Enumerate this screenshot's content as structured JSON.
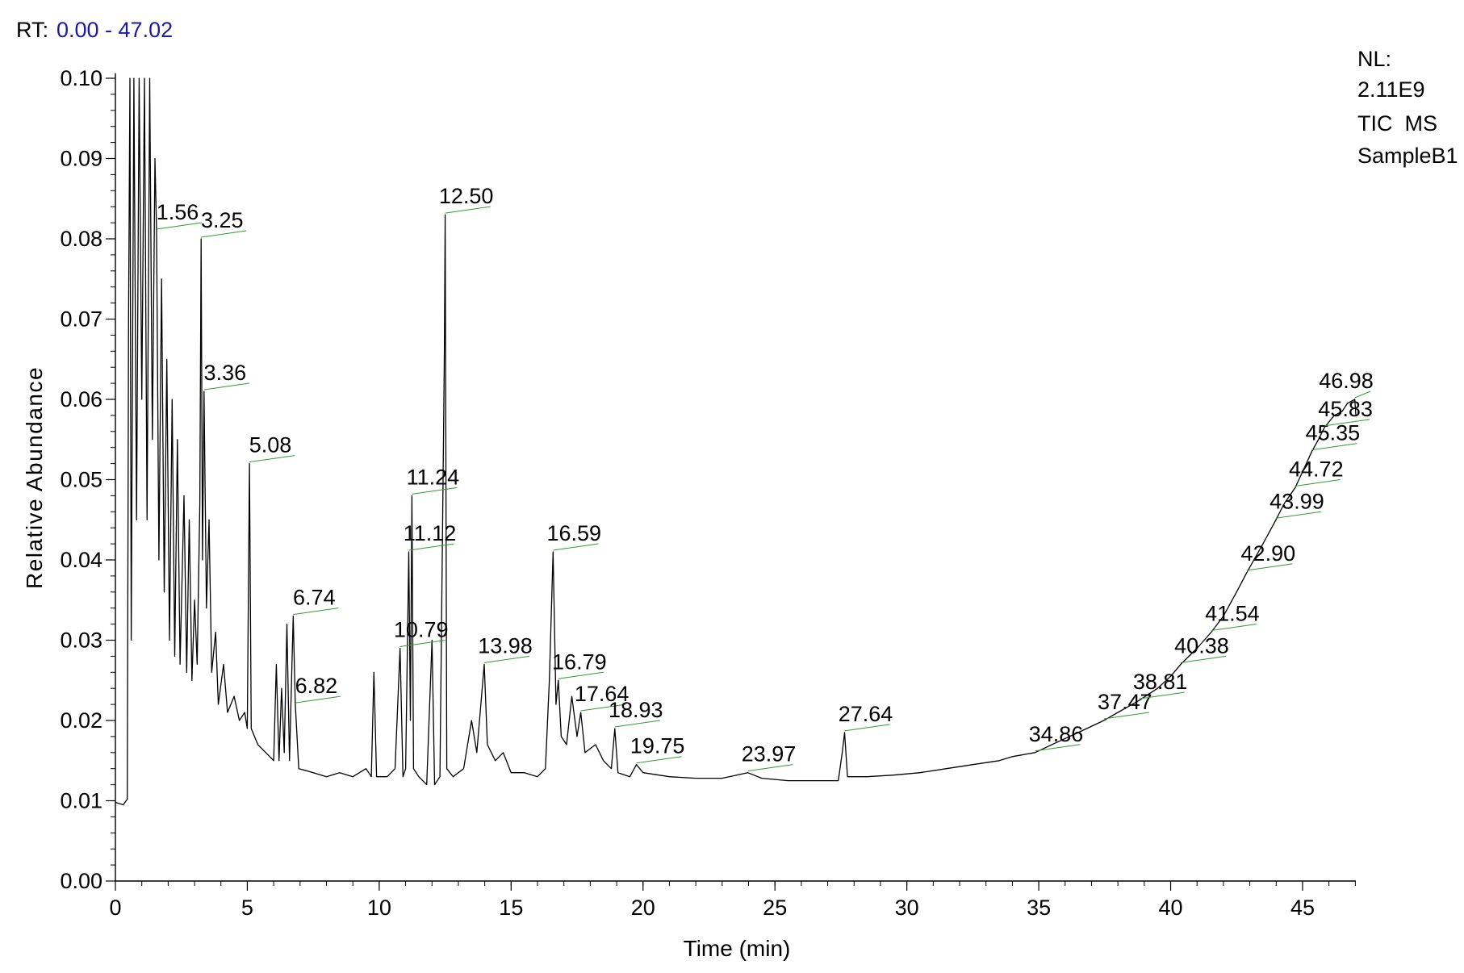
{
  "header": {
    "rt_label": "RT:",
    "rt_range": "0.00 - 47.02"
  },
  "info": {
    "nl_label": "NL:",
    "nl_value": "2.11E9",
    "scan_type": "TIC  MS",
    "sample": "SampleB1"
  },
  "colors": {
    "trace": "#000000",
    "peak_leader": "#2e9e2e",
    "rt_range_text": "#1a1aa6"
  },
  "chart_data": {
    "type": "line",
    "title": "",
    "xlabel": "Time (min)",
    "ylabel": "Relative Abundance",
    "xlim": [
      0,
      47.02
    ],
    "ylim": [
      0,
      0.1
    ],
    "x_ticks": [
      0,
      5,
      10,
      15,
      20,
      25,
      30,
      35,
      40,
      45
    ],
    "x_tick_labels": [
      "0",
      "5",
      "10",
      "15",
      "20",
      "25",
      "30",
      "35",
      "40",
      "45"
    ],
    "y_ticks": [
      0,
      0.01,
      0.02,
      0.03,
      0.04,
      0.05,
      0.06,
      0.07,
      0.08,
      0.09,
      0.1
    ],
    "y_tick_labels": [
      "0.00",
      "0.01",
      "0.02",
      "0.03",
      "0.04",
      "0.05",
      "0.06",
      "0.07",
      "0.08",
      "0.09",
      "0.10"
    ],
    "grid": false,
    "series": [
      {
        "points": [
          [
            0,
            0.0098
          ],
          [
            0.3,
            0.0095
          ],
          [
            0.45,
            0.0102
          ],
          [
            0.5,
            0.07
          ],
          [
            0.55,
            0.1
          ],
          [
            0.6,
            0.03
          ],
          [
            0.7,
            0.1
          ],
          [
            0.8,
            0.045
          ],
          [
            0.9,
            0.1
          ],
          [
            1.0,
            0.06
          ],
          [
            1.1,
            0.1
          ],
          [
            1.2,
            0.045
          ],
          [
            1.3,
            0.1
          ],
          [
            1.4,
            0.055
          ],
          [
            1.5,
            0.09
          ],
          [
            1.56,
            0.081
          ],
          [
            1.65,
            0.04
          ],
          [
            1.75,
            0.075
          ],
          [
            1.85,
            0.036
          ],
          [
            1.95,
            0.065
          ],
          [
            2.05,
            0.03
          ],
          [
            2.15,
            0.06
          ],
          [
            2.25,
            0.028
          ],
          [
            2.35,
            0.055
          ],
          [
            2.45,
            0.027
          ],
          [
            2.6,
            0.048
          ],
          [
            2.7,
            0.026
          ],
          [
            2.8,
            0.045
          ],
          [
            2.9,
            0.025
          ],
          [
            3.0,
            0.035
          ],
          [
            3.1,
            0.027
          ],
          [
            3.2,
            0.047
          ],
          [
            3.25,
            0.08
          ],
          [
            3.3,
            0.04
          ],
          [
            3.36,
            0.061
          ],
          [
            3.45,
            0.034
          ],
          [
            3.55,
            0.045
          ],
          [
            3.65,
            0.026
          ],
          [
            3.8,
            0.031
          ],
          [
            3.9,
            0.022
          ],
          [
            4.1,
            0.027
          ],
          [
            4.25,
            0.021
          ],
          [
            4.5,
            0.023
          ],
          [
            4.7,
            0.02
          ],
          [
            4.9,
            0.021
          ],
          [
            5.0,
            0.019
          ],
          [
            5.08,
            0.052
          ],
          [
            5.15,
            0.019
          ],
          [
            5.4,
            0.017
          ],
          [
            5.7,
            0.016
          ],
          [
            6.0,
            0.015
          ],
          [
            6.1,
            0.027
          ],
          [
            6.2,
            0.015
          ],
          [
            6.3,
            0.024
          ],
          [
            6.4,
            0.016
          ],
          [
            6.5,
            0.032
          ],
          [
            6.6,
            0.015
          ],
          [
            6.74,
            0.033
          ],
          [
            6.82,
            0.022
          ],
          [
            6.95,
            0.014
          ],
          [
            7.5,
            0.0135
          ],
          [
            8.0,
            0.013
          ],
          [
            8.5,
            0.0135
          ],
          [
            9.0,
            0.013
          ],
          [
            9.5,
            0.014
          ],
          [
            9.7,
            0.013
          ],
          [
            9.8,
            0.026
          ],
          [
            9.9,
            0.013
          ],
          [
            10.3,
            0.013
          ],
          [
            10.6,
            0.014
          ],
          [
            10.79,
            0.029
          ],
          [
            10.9,
            0.013
          ],
          [
            11.0,
            0.014
          ],
          [
            11.12,
            0.041
          ],
          [
            11.18,
            0.02
          ],
          [
            11.24,
            0.048
          ],
          [
            11.3,
            0.014
          ],
          [
            11.5,
            0.013
          ],
          [
            11.8,
            0.012
          ],
          [
            12.0,
            0.03
          ],
          [
            12.1,
            0.012
          ],
          [
            12.3,
            0.013
          ],
          [
            12.42,
            0.05
          ],
          [
            12.47,
            0.066
          ],
          [
            12.5,
            0.083
          ],
          [
            12.56,
            0.014
          ],
          [
            12.8,
            0.013
          ],
          [
            13.2,
            0.014
          ],
          [
            13.5,
            0.02
          ],
          [
            13.7,
            0.016
          ],
          [
            13.98,
            0.027
          ],
          [
            14.1,
            0.017
          ],
          [
            14.4,
            0.015
          ],
          [
            14.7,
            0.016
          ],
          [
            15.0,
            0.0135
          ],
          [
            15.5,
            0.0135
          ],
          [
            16.0,
            0.013
          ],
          [
            16.3,
            0.014
          ],
          [
            16.45,
            0.025
          ],
          [
            16.59,
            0.041
          ],
          [
            16.7,
            0.022
          ],
          [
            16.79,
            0.025
          ],
          [
            16.9,
            0.018
          ],
          [
            17.1,
            0.017
          ],
          [
            17.3,
            0.023
          ],
          [
            17.5,
            0.018
          ],
          [
            17.64,
            0.021
          ],
          [
            17.8,
            0.016
          ],
          [
            18.2,
            0.017
          ],
          [
            18.5,
            0.015
          ],
          [
            18.8,
            0.014
          ],
          [
            18.93,
            0.019
          ],
          [
            19.05,
            0.0135
          ],
          [
            19.5,
            0.013
          ],
          [
            19.75,
            0.0145
          ],
          [
            20.0,
            0.0135
          ],
          [
            21.0,
            0.013
          ],
          [
            22.0,
            0.0128
          ],
          [
            23.0,
            0.0128
          ],
          [
            23.97,
            0.0135
          ],
          [
            24.5,
            0.0128
          ],
          [
            25.5,
            0.0125
          ],
          [
            26.5,
            0.0125
          ],
          [
            27.4,
            0.0125
          ],
          [
            27.55,
            0.016
          ],
          [
            27.64,
            0.0185
          ],
          [
            27.75,
            0.013
          ],
          [
            28.5,
            0.013
          ],
          [
            29.5,
            0.0132
          ],
          [
            30.5,
            0.0135
          ],
          [
            31.5,
            0.014
          ],
          [
            32.5,
            0.0145
          ],
          [
            33.5,
            0.015
          ],
          [
            34.0,
            0.0155
          ],
          [
            34.86,
            0.016
          ],
          [
            35.5,
            0.017
          ],
          [
            36.5,
            0.0185
          ],
          [
            37.47,
            0.02
          ],
          [
            38.0,
            0.021
          ],
          [
            38.81,
            0.0225
          ],
          [
            39.5,
            0.024
          ],
          [
            40.0,
            0.0255
          ],
          [
            40.38,
            0.027
          ],
          [
            41.0,
            0.029
          ],
          [
            41.54,
            0.031
          ],
          [
            42.0,
            0.033
          ],
          [
            42.5,
            0.036
          ],
          [
            42.9,
            0.0385
          ],
          [
            43.5,
            0.042
          ],
          [
            43.99,
            0.045
          ],
          [
            44.3,
            0.047
          ],
          [
            44.72,
            0.049
          ],
          [
            45.0,
            0.051
          ],
          [
            45.35,
            0.0535
          ],
          [
            45.6,
            0.055
          ],
          [
            45.83,
            0.0565
          ],
          [
            46.2,
            0.058
          ],
          [
            46.5,
            0.0585
          ],
          [
            46.7,
            0.0595
          ],
          [
            46.98,
            0.06
          ],
          [
            47.02,
            0.058
          ]
        ]
      }
    ],
    "peak_labels": [
      {
        "text": "1.56",
        "x": 1.56,
        "y": 0.081
      },
      {
        "text": "3.25",
        "x": 3.25,
        "y": 0.08
      },
      {
        "text": "3.36",
        "x": 3.36,
        "y": 0.061
      },
      {
        "text": "5.08",
        "x": 5.08,
        "y": 0.052
      },
      {
        "text": "6.74",
        "x": 6.74,
        "y": 0.033
      },
      {
        "text": "6.82",
        "x": 6.82,
        "y": 0.022
      },
      {
        "text": "10.79",
        "x": 10.79,
        "y": 0.029
      },
      {
        "text": "11.12",
        "x": 11.12,
        "y": 0.041
      },
      {
        "text": "11.24",
        "x": 11.24,
        "y": 0.048
      },
      {
        "text": "12.50",
        "x": 12.5,
        "y": 0.083
      },
      {
        "text": "13.98",
        "x": 13.98,
        "y": 0.027
      },
      {
        "text": "16.59",
        "x": 16.59,
        "y": 0.041
      },
      {
        "text": "16.79",
        "x": 16.79,
        "y": 0.025
      },
      {
        "text": "17.64",
        "x": 17.64,
        "y": 0.021
      },
      {
        "text": "18.93",
        "x": 18.93,
        "y": 0.019
      },
      {
        "text": "19.75",
        "x": 19.75,
        "y": 0.0145
      },
      {
        "text": "23.97",
        "x": 23.97,
        "y": 0.0135
      },
      {
        "text": "27.64",
        "x": 27.64,
        "y": 0.0185
      },
      {
        "text": "34.86",
        "x": 34.86,
        "y": 0.016
      },
      {
        "text": "37.47",
        "x": 37.47,
        "y": 0.02
      },
      {
        "text": "38.81",
        "x": 38.81,
        "y": 0.0225
      },
      {
        "text": "40.38",
        "x": 40.38,
        "y": 0.027
      },
      {
        "text": "41.54",
        "x": 41.54,
        "y": 0.031
      },
      {
        "text": "42.90",
        "x": 42.9,
        "y": 0.0385
      },
      {
        "text": "43.99",
        "x": 43.99,
        "y": 0.045
      },
      {
        "text": "44.72",
        "x": 44.72,
        "y": 0.049
      },
      {
        "text": "45.35",
        "x": 45.35,
        "y": 0.0535
      },
      {
        "text": "45.83",
        "x": 45.83,
        "y": 0.0565
      },
      {
        "text": "46.98",
        "x": 46.98,
        "y": 0.06
      }
    ]
  }
}
